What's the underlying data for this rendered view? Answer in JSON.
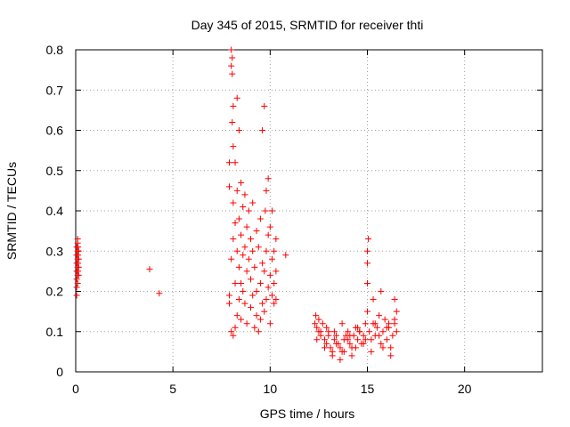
{
  "chart_data": {
    "type": "scatter",
    "title": "Day 345 of 2015, SRMTID for receiver thti",
    "xlabel": "GPS time / hours",
    "ylabel": "SRMTID / TECUs",
    "xlim": [
      0,
      24
    ],
    "ylim": [
      0,
      0.8
    ],
    "x_ticks": [
      0,
      5,
      10,
      15,
      20
    ],
    "x_tick_labels": [
      "0",
      "5",
      "10",
      "15",
      "20"
    ],
    "y_ticks": [
      0,
      0.1,
      0.2,
      0.3,
      0.4,
      0.5,
      0.6,
      0.7,
      0.8
    ],
    "y_tick_labels": [
      "0",
      "0.1",
      "0.2",
      "0.3",
      "0.4",
      "0.5",
      "0.6",
      "0.7",
      "0.8"
    ],
    "grid": true,
    "marker": "+",
    "marker_color": "#ff0000",
    "series": [
      {
        "name": "SRMTID",
        "x": [
          0.05,
          0.05,
          0.05,
          0.05,
          0.05,
          0.05,
          0.05,
          0.1,
          0.1,
          0.1,
          0.1,
          0.1,
          0.1,
          0.1,
          0.12,
          0.12,
          0.12,
          0.12,
          0.15,
          0.15,
          0.15,
          0.15,
          3.8,
          4.3,
          7.9,
          7.9,
          7.9,
          7.9,
          8.0,
          8.0,
          8.0,
          8.0,
          8.05,
          8.05,
          8.05,
          8.1,
          8.1,
          8.1,
          8.1,
          8.1,
          8.2,
          8.2,
          8.2,
          8.2,
          8.3,
          8.3,
          8.3,
          8.3,
          8.4,
          8.4,
          8.4,
          8.4,
          8.5,
          8.5,
          8.5,
          8.5,
          8.6,
          8.6,
          8.6,
          8.7,
          8.7,
          8.7,
          8.8,
          8.8,
          8.8,
          8.9,
          8.9,
          9.0,
          9.0,
          9.0,
          9.1,
          9.1,
          9.1,
          9.2,
          9.2,
          9.3,
          9.3,
          9.3,
          9.4,
          9.4,
          9.5,
          9.5,
          9.5,
          9.6,
          9.6,
          9.6,
          9.7,
          9.7,
          9.7,
          9.75,
          9.8,
          9.8,
          9.8,
          9.9,
          9.9,
          9.9,
          10.0,
          10.0,
          10.0,
          10.1,
          10.1,
          10.1,
          10.2,
          10.2,
          10.2,
          10.3,
          10.3,
          10.3,
          10.8,
          12.3,
          12.35,
          12.4,
          12.5,
          12.6,
          12.7,
          12.8,
          12.9,
          13.0,
          13.1,
          13.2,
          13.3,
          13.4,
          13.5,
          13.6,
          13.7,
          13.8,
          13.9,
          14.0,
          14.1,
          14.2,
          14.3,
          14.4,
          14.5,
          14.6,
          14.7,
          14.8,
          14.9,
          15.0,
          15.0,
          15.0,
          15.0,
          15.05,
          15.1,
          15.2,
          15.3,
          15.4,
          15.5,
          15.6,
          15.7,
          15.8,
          15.9,
          16.0,
          16.1,
          16.2,
          16.3,
          16.4,
          16.5,
          16.5,
          12.4,
          12.6,
          12.8,
          13.0,
          13.2,
          13.4,
          13.6,
          13.8,
          14.0,
          14.2,
          14.4,
          14.6,
          14.8,
          15.2,
          15.4,
          15.6,
          15.8,
          16.0,
          16.2,
          16.4,
          12.5,
          12.9,
          13.3,
          13.7,
          14.1,
          14.5,
          14.9,
          15.3,
          15.7,
          16.1,
          16.4
        ],
        "y": [
          0.19,
          0.21,
          0.23,
          0.25,
          0.27,
          0.29,
          0.31,
          0.22,
          0.24,
          0.26,
          0.28,
          0.3,
          0.32,
          0.33,
          0.25,
          0.27,
          0.29,
          0.31,
          0.24,
          0.26,
          0.28,
          0.3,
          0.255,
          0.195,
          0.17,
          0.19,
          0.46,
          0.52,
          0.1,
          0.28,
          0.76,
          0.8,
          0.62,
          0.78,
          0.74,
          0.09,
          0.33,
          0.42,
          0.56,
          0.66,
          0.11,
          0.22,
          0.37,
          0.52,
          0.14,
          0.3,
          0.45,
          0.68,
          0.18,
          0.26,
          0.38,
          0.6,
          0.13,
          0.22,
          0.34,
          0.47,
          0.2,
          0.29,
          0.41,
          0.17,
          0.31,
          0.44,
          0.12,
          0.25,
          0.36,
          0.28,
          0.4,
          0.16,
          0.23,
          0.33,
          0.19,
          0.3,
          0.42,
          0.11,
          0.26,
          0.14,
          0.2,
          0.35,
          0.1,
          0.31,
          0.13,
          0.22,
          0.38,
          0.17,
          0.27,
          0.6,
          0.15,
          0.25,
          0.66,
          0.4,
          0.18,
          0.3,
          0.45,
          0.21,
          0.34,
          0.48,
          0.24,
          0.36,
          0.12,
          0.19,
          0.28,
          0.4,
          0.17,
          0.22,
          0.3,
          0.18,
          0.25,
          0.33,
          0.29,
          0.12,
          0.14,
          0.11,
          0.1,
          0.09,
          0.12,
          0.08,
          0.07,
          0.1,
          0.06,
          0.05,
          0.08,
          0.09,
          0.07,
          0.06,
          0.05,
          0.08,
          0.09,
          0.1,
          0.07,
          0.06,
          0.09,
          0.11,
          0.08,
          0.1,
          0.07,
          0.09,
          0.12,
          0.15,
          0.22,
          0.27,
          0.3,
          0.33,
          0.1,
          0.08,
          0.12,
          0.09,
          0.11,
          0.14,
          0.07,
          0.1,
          0.13,
          0.08,
          0.11,
          0.06,
          0.09,
          0.12,
          0.1,
          0.15,
          0.08,
          0.1,
          0.06,
          0.09,
          0.04,
          0.07,
          0.03,
          0.05,
          0.08,
          0.04,
          0.06,
          0.1,
          0.07,
          0.05,
          0.12,
          0.09,
          0.06,
          0.11,
          0.04,
          0.13,
          0.13,
          0.11,
          0.1,
          0.12,
          0.09,
          0.11,
          0.08,
          0.18,
          0.2,
          0.12,
          0.18
        ]
      }
    ]
  }
}
